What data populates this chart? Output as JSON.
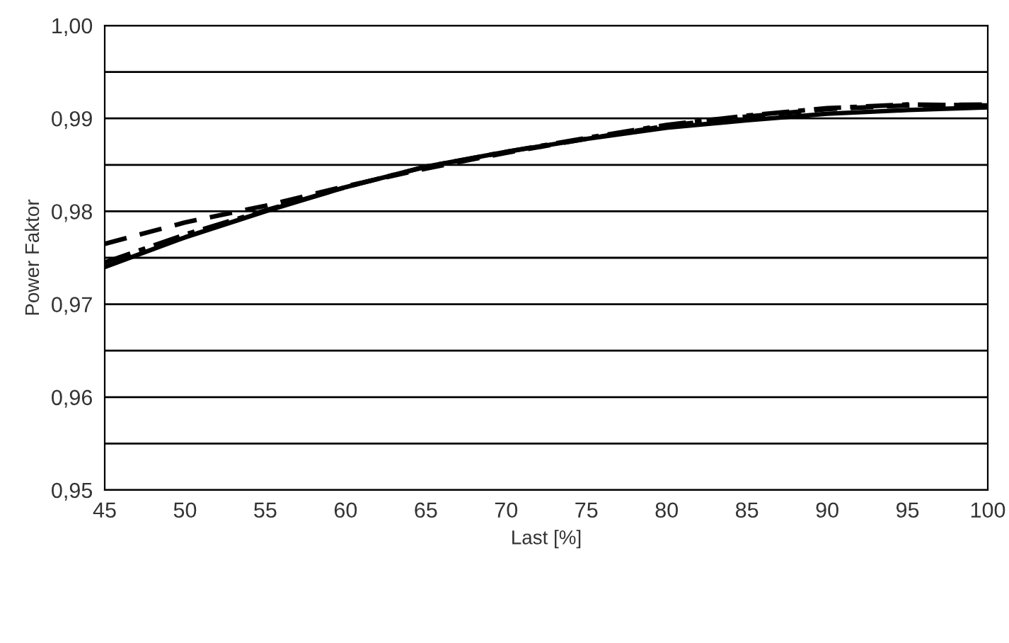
{
  "chart_data": {
    "type": "line",
    "xlabel": "Last [%]",
    "ylabel": "Power Faktor",
    "x": [
      45,
      50,
      55,
      60,
      65,
      70,
      75,
      80,
      85,
      90,
      95,
      100
    ],
    "series": [
      {
        "color": "#000000",
        "line_style": "solid",
        "values": [
          0.974,
          0.9772,
          0.98,
          0.9826,
          0.9848,
          0.9864,
          0.9878,
          0.989,
          0.9898,
          0.9905,
          0.9909,
          0.9912
        ]
      },
      {
        "color": "#000000",
        "line_style": "dashed",
        "values": [
          0.9765,
          0.9788,
          0.9806,
          0.9827,
          0.9846,
          0.9863,
          0.9878,
          0.9892,
          0.9902,
          0.991,
          0.9914,
          0.9915
        ]
      },
      {
        "color": "#000000",
        "line_style": "dashdot",
        "values": [
          0.9745,
          0.9775,
          0.9801,
          0.9826,
          0.9848,
          0.9864,
          0.9879,
          0.9893,
          0.9903,
          0.9911,
          0.9915,
          0.9914
        ]
      }
    ],
    "xlim": [
      45,
      100
    ],
    "ylim": [
      0.95,
      1.0
    ],
    "xticks": [
      45,
      50,
      55,
      60,
      65,
      70,
      75,
      80,
      85,
      90,
      95,
      100
    ],
    "yticks": [
      {
        "value": 0.95,
        "label": "0,95"
      },
      {
        "value": 0.955,
        "label": null
      },
      {
        "value": 0.96,
        "label": "0,96"
      },
      {
        "value": 0.965,
        "label": null
      },
      {
        "value": 0.97,
        "label": "0,97"
      },
      {
        "value": 0.975,
        "label": null
      },
      {
        "value": 0.98,
        "label": "0,98"
      },
      {
        "value": 0.985,
        "label": null
      },
      {
        "value": 0.99,
        "label": "0,99"
      },
      {
        "value": 0.995,
        "label": null
      },
      {
        "value": 1.0,
        "label": "1,00"
      }
    ],
    "grid": "y",
    "legend": false,
    "marker": "none"
  }
}
